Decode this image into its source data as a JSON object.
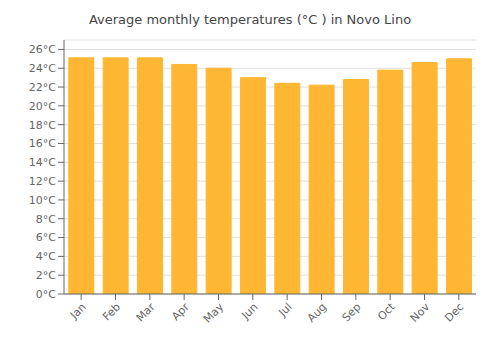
{
  "chart_data": {
    "type": "bar",
    "title": "Average monthly temperatures (°C ) in Novo Lino",
    "categories": [
      "Jan",
      "Feb",
      "Mar",
      "Apr",
      "May",
      "Jun",
      "Jul",
      "Aug",
      "Sep",
      "Oct",
      "Nov",
      "Dec"
    ],
    "values": [
      25.1,
      25.1,
      25.1,
      24.4,
      24.0,
      23.0,
      22.4,
      22.2,
      22.8,
      23.8,
      24.6,
      25.0
    ],
    "color": "#FFB733",
    "ylim": [
      0,
      27
    ],
    "yticks": [
      {
        "value": 0,
        "label": "0°C"
      },
      {
        "value": 2,
        "label": "2°C"
      },
      {
        "value": 4,
        "label": "4°C"
      },
      {
        "value": 6,
        "label": "6°C"
      },
      {
        "value": 8,
        "label": "8°C"
      },
      {
        "value": 10,
        "label": "10°C"
      },
      {
        "value": 12,
        "label": "12°C"
      },
      {
        "value": 14,
        "label": "14°C"
      },
      {
        "value": 16,
        "label": "16°C"
      },
      {
        "value": 18,
        "label": "18°C"
      },
      {
        "value": 20,
        "label": "20°C"
      },
      {
        "value": 22,
        "label": "22°C"
      },
      {
        "value": 24,
        "label": "24°C"
      },
      {
        "value": 26,
        "label": "26°C"
      }
    ],
    "grid": true
  }
}
